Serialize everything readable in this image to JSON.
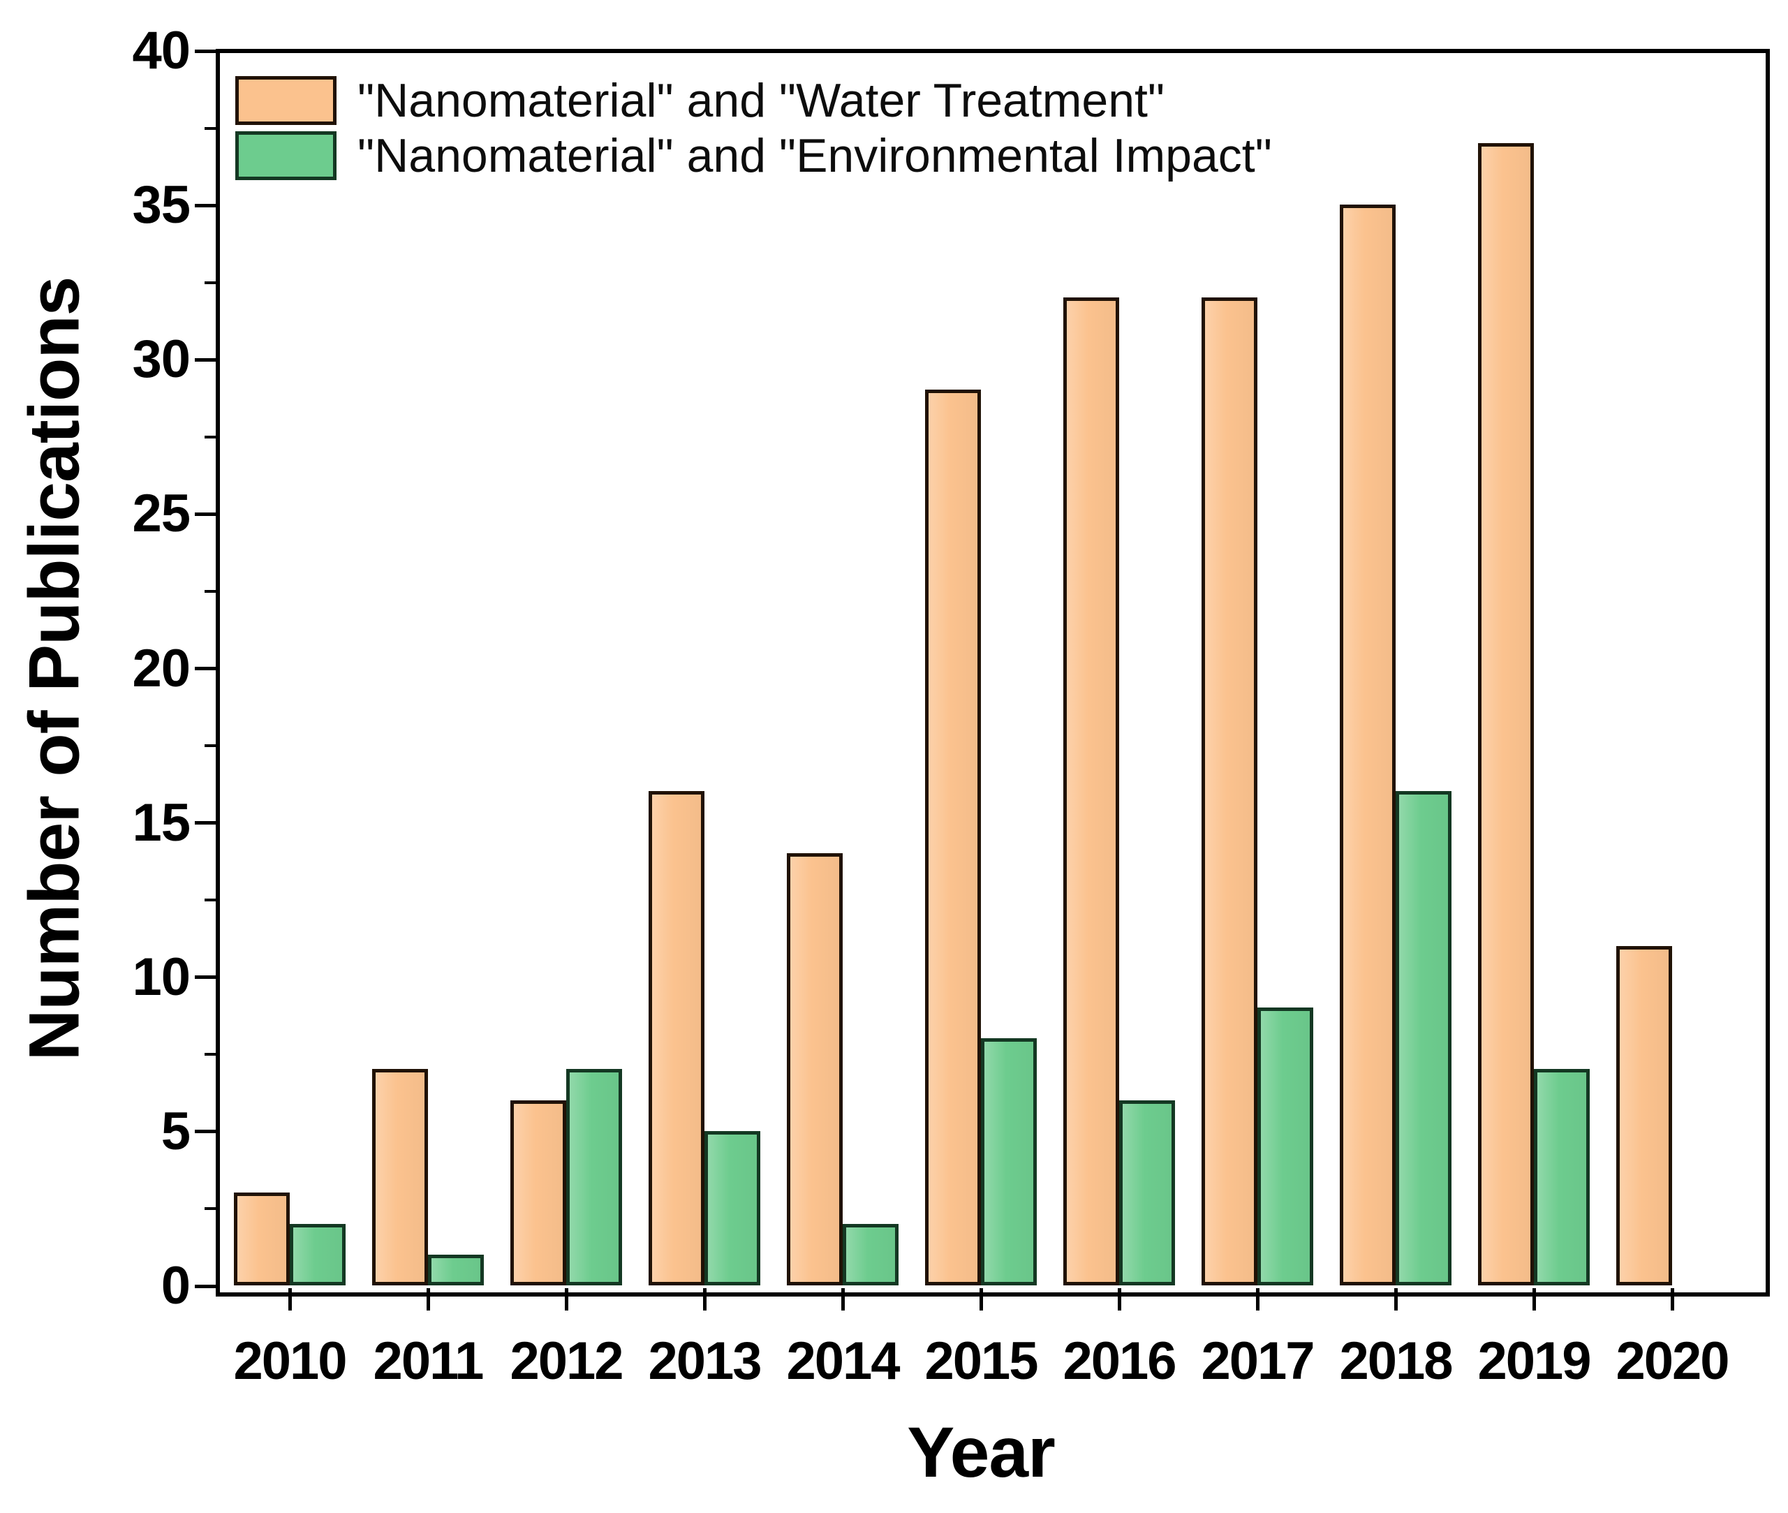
{
  "figure": {
    "y_axis_title": "Number of Publications",
    "x_axis_title": "Year",
    "background_color": "#ffffff",
    "axis_color": "#000000"
  },
  "legend": {
    "items": [
      {
        "label": "\"Nanomaterial\" and \"Water Treatment\""
      },
      {
        "label": "\"Nanomaterial\" and \"Environmental Impact\""
      }
    ]
  },
  "chart_data": {
    "type": "bar",
    "categories": [
      "2010",
      "2011",
      "2012",
      "2013",
      "2014",
      "2015",
      "2016",
      "2017",
      "2018",
      "2019",
      "2020"
    ],
    "series": [
      {
        "name": "\"Nanomaterial\" and \"Water Treatment\"",
        "fill_color": "#fbc28e",
        "edge_color": "#201206",
        "values": [
          3,
          7,
          6,
          16,
          14,
          29,
          32,
          32,
          35,
          37,
          11
        ]
      },
      {
        "name": "\"Nanomaterial\" and \"Environmental Impact\"",
        "fill_color": "#6dcc8e",
        "edge_color": "#143823",
        "values": [
          2,
          1,
          7,
          5,
          2,
          8,
          6,
          9,
          16,
          7,
          0
        ]
      }
    ],
    "title": "",
    "xlabel": "Year",
    "ylabel": "Number of Publications",
    "ylim": [
      0,
      40
    ],
    "y_major_ticks": [
      0,
      5,
      10,
      15,
      20,
      25,
      30,
      35,
      40
    ],
    "y_minor_tick_step": 2.5,
    "grid": false,
    "legend_position": "top-left-inside"
  }
}
